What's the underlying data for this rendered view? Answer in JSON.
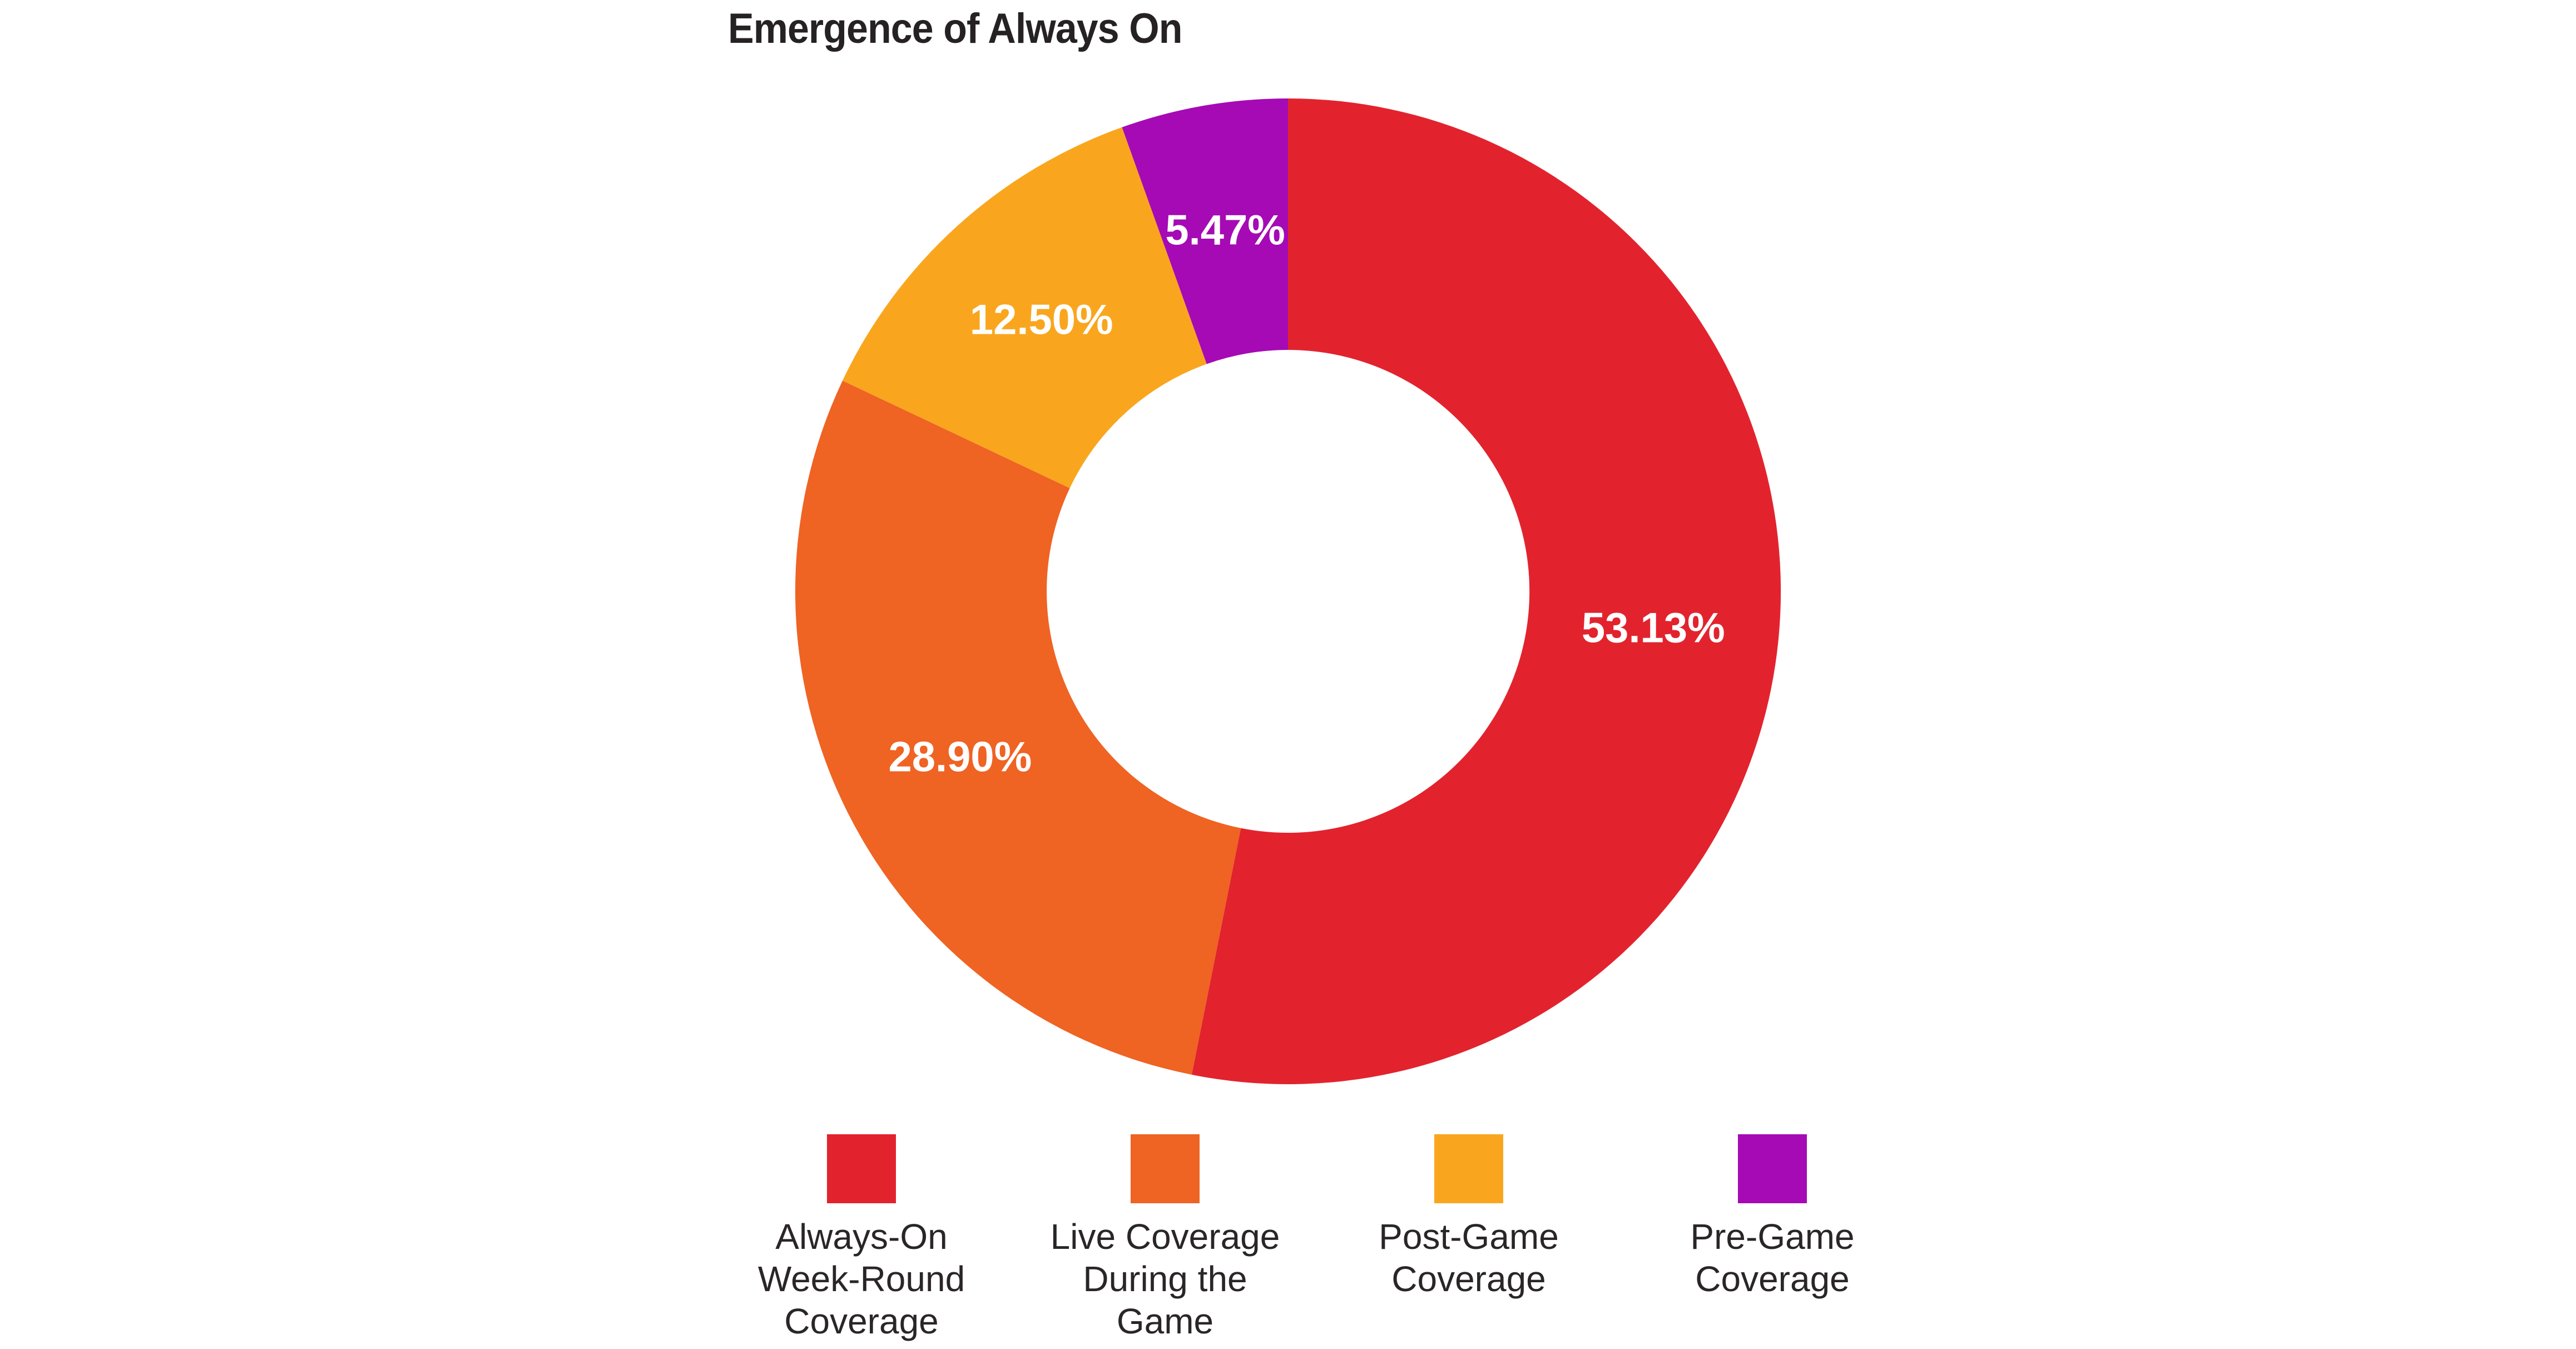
{
  "chart": {
    "title": "Emergence of Always On"
  },
  "chart_data": {
    "type": "pie",
    "subtype": "donut",
    "title": "Emergence of Always On",
    "categories": [
      "Always-On Week-Round Coverage",
      "Live Coverage During the Game",
      "Post-Game Coverage",
      "Pre-Game Coverage"
    ],
    "values": [
      53.13,
      28.9,
      12.5,
      5.47
    ],
    "value_labels": [
      "53.13%",
      "28.90%",
      "12.50%",
      "5.47%"
    ],
    "colors": [
      "#E2232E",
      "#EF6323",
      "#F9A61E",
      "#A50AB5"
    ],
    "start_angle_deg": 0,
    "direction": "clockwise",
    "inner_radius_ratio": 0.49,
    "value_label_color": "#FFFFFF",
    "legend_position": "bottom",
    "background_color": "#FFFFFF",
    "title_color": "#262223"
  },
  "legend": {
    "items": [
      {
        "label": "Always-On Week-Round Coverage",
        "lines": [
          "Always-On",
          "Week-Round",
          "Coverage"
        ]
      },
      {
        "label": "Live Coverage During the Game",
        "lines": [
          "Live Coverage",
          "During the",
          "Game"
        ]
      },
      {
        "label": "Post-Game Coverage",
        "lines": [
          "Post-Game",
          "Coverage"
        ]
      },
      {
        "label": "Pre-Game Coverage",
        "lines": [
          "Pre-Game",
          "Coverage"
        ]
      }
    ]
  }
}
